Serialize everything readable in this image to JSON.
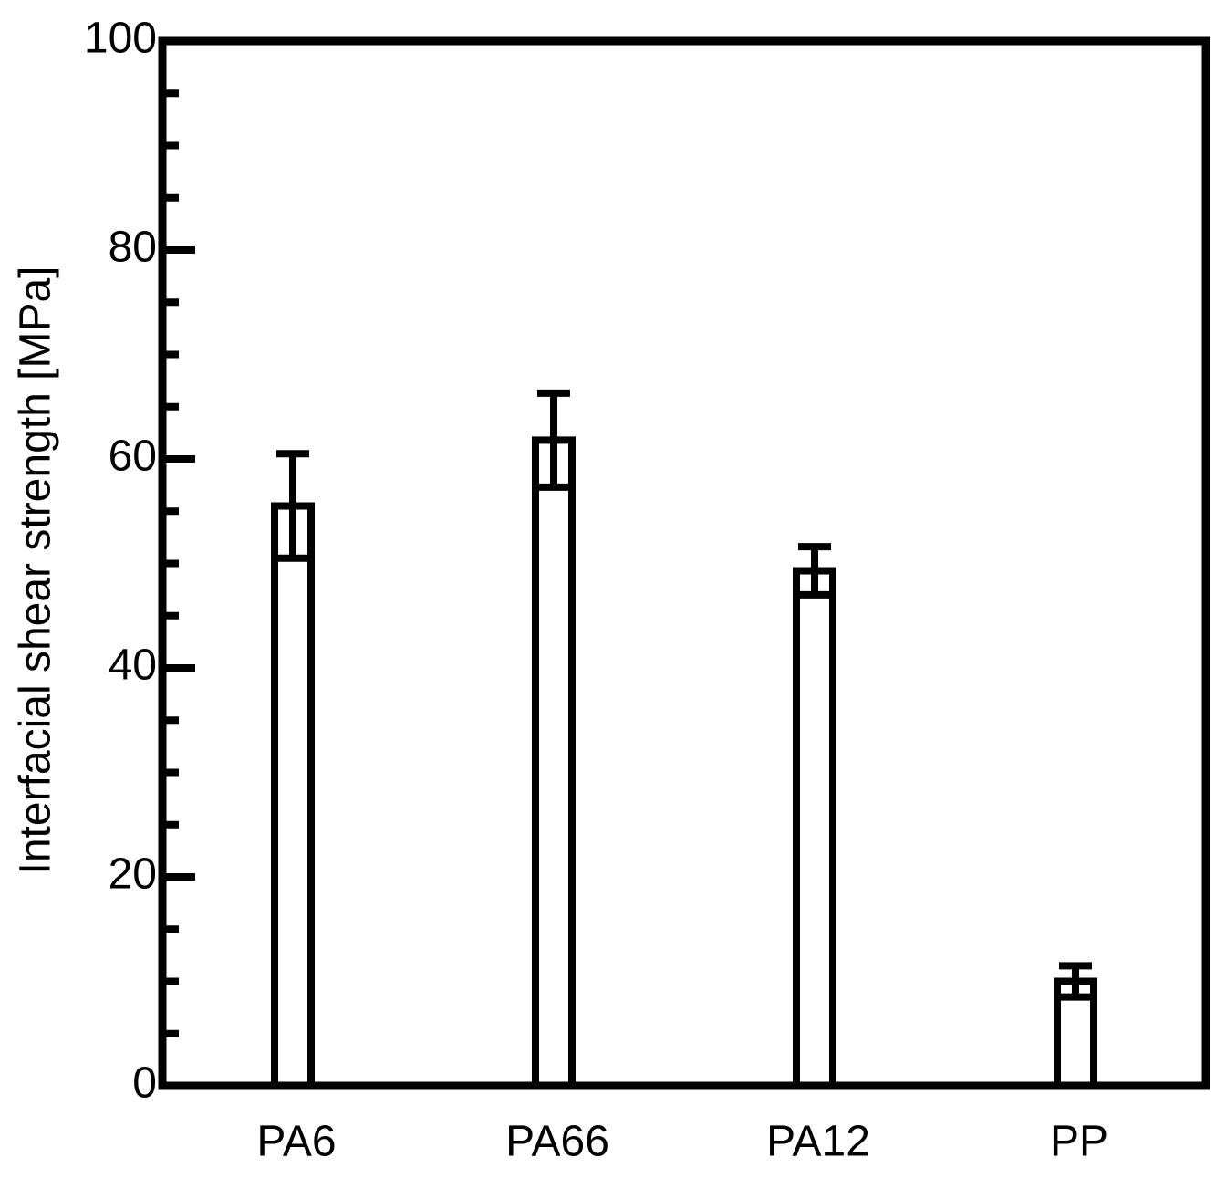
{
  "chart_data": {
    "type": "bar",
    "y_label": "Interfacial shear strength [MPa]",
    "categories": [
      "PA6",
      "PA66",
      "PA12",
      "PP"
    ],
    "values": [
      55.5,
      61.8,
      49.3,
      10
    ],
    "errors": [
      5,
      4.5,
      2.3,
      1.5
    ],
    "color": "#ffffff",
    "ylim": [
      0,
      100
    ],
    "yticks": [
      0,
      20,
      40,
      60,
      80,
      100
    ],
    "minor_yticks": [
      5,
      10,
      15,
      25,
      30,
      35,
      45,
      50,
      55,
      65,
      70,
      75,
      85,
      90,
      95
    ],
    "grid": false
  }
}
